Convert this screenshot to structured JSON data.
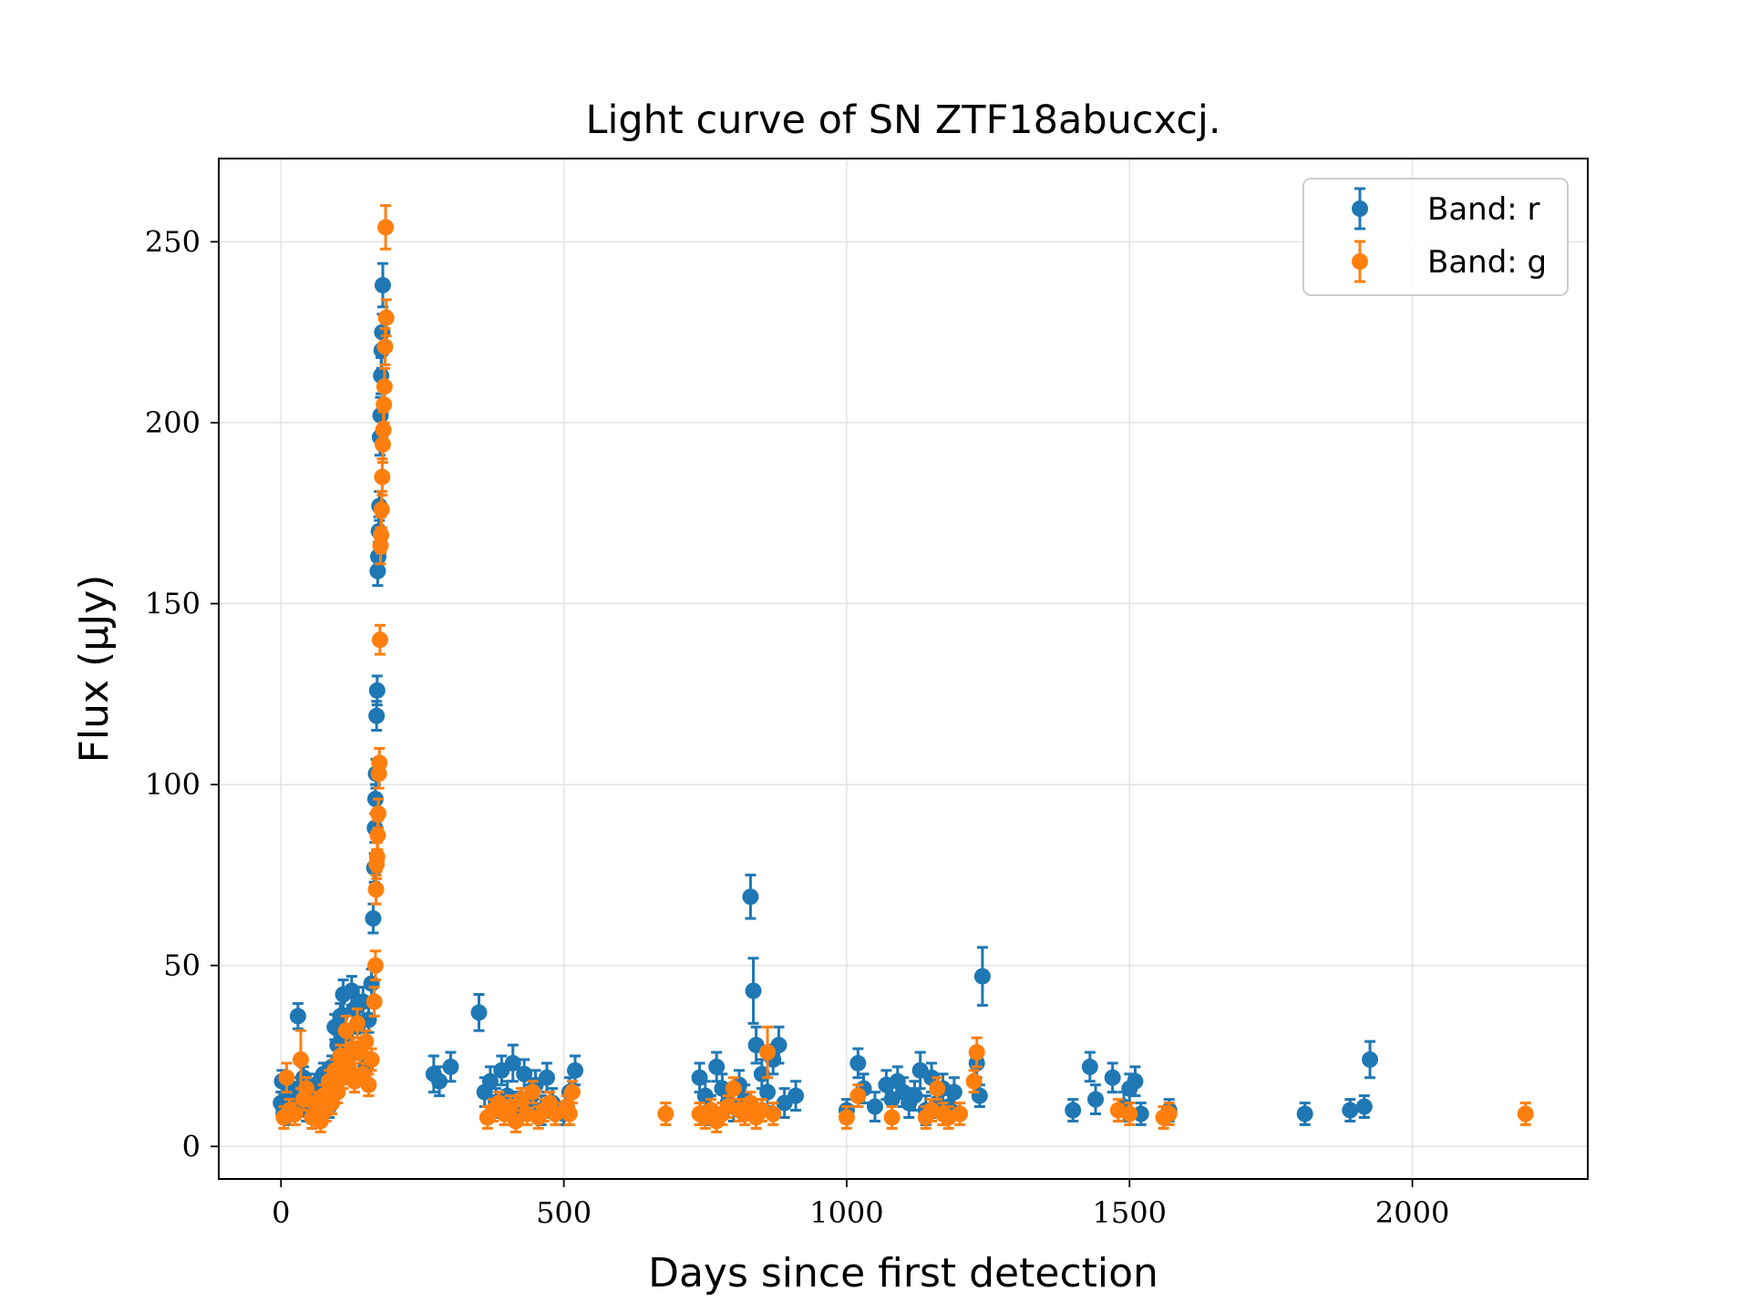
{
  "chart_data": {
    "type": "scatter",
    "title": "Light curve of SN ZTF18abucxcj.",
    "xlabel": "Days since first detection",
    "ylabel": "Flux (μJy)",
    "xlim": [
      -110,
      2310
    ],
    "ylim": [
      -9,
      273
    ],
    "xticks": [
      0,
      500,
      1000,
      1500,
      2000
    ],
    "yticks": [
      0,
      50,
      100,
      150,
      200,
      250
    ],
    "grid": true,
    "legend_position": "top-right",
    "error_bars": true,
    "series": [
      {
        "name": "Band: r",
        "color": "#1f77b4",
        "points": [
          [
            0,
            12,
            3
          ],
          [
            2,
            18,
            3
          ],
          [
            5,
            10,
            3
          ],
          [
            10,
            14,
            3
          ],
          [
            15,
            9,
            3
          ],
          [
            20,
            16,
            3
          ],
          [
            25,
            11,
            3
          ],
          [
            30,
            36,
            3.5
          ],
          [
            35,
            13,
            3
          ],
          [
            40,
            19,
            3
          ],
          [
            45,
            10,
            3
          ],
          [
            50,
            15,
            3
          ],
          [
            55,
            8,
            3
          ],
          [
            60,
            17,
            3
          ],
          [
            65,
            12,
            3
          ],
          [
            70,
            9,
            3
          ],
          [
            75,
            20,
            3
          ],
          [
            80,
            14,
            3
          ],
          [
            85,
            11,
            3
          ],
          [
            90,
            22,
            3
          ],
          [
            95,
            33,
            3.5
          ],
          [
            100,
            28,
            3
          ],
          [
            105,
            36,
            3.5
          ],
          [
            110,
            42,
            4
          ],
          [
            115,
            30,
            3
          ],
          [
            120,
            25,
            3
          ],
          [
            125,
            43,
            4
          ],
          [
            130,
            38,
            4
          ],
          [
            135,
            33,
            3
          ],
          [
            140,
            27,
            3
          ],
          [
            145,
            40,
            4
          ],
          [
            150,
            22,
            3
          ],
          [
            155,
            35,
            3.5
          ],
          [
            160,
            45,
            4
          ],
          [
            163,
            63,
            4
          ],
          [
            165,
            77,
            4
          ],
          [
            166,
            88,
            4
          ],
          [
            167,
            96,
            4
          ],
          [
            168,
            103,
            4
          ],
          [
            169,
            119,
            4
          ],
          [
            170,
            126,
            4
          ],
          [
            171,
            159,
            4
          ],
          [
            172,
            163,
            4
          ],
          [
            173,
            170,
            4
          ],
          [
            174,
            177,
            4
          ],
          [
            175,
            196,
            5
          ],
          [
            176,
            202,
            5
          ],
          [
            177,
            213,
            5
          ],
          [
            178,
            220,
            5
          ],
          [
            179,
            225,
            5
          ],
          [
            180,
            238,
            6
          ],
          [
            270,
            20,
            5
          ],
          [
            280,
            18,
            4
          ],
          [
            300,
            22,
            4
          ],
          [
            350,
            37,
            5
          ],
          [
            360,
            15,
            4
          ],
          [
            370,
            18,
            4
          ],
          [
            380,
            12,
            4
          ],
          [
            390,
            21,
            4
          ],
          [
            400,
            14,
            4
          ],
          [
            410,
            23,
            5
          ],
          [
            420,
            11,
            4
          ],
          [
            430,
            20,
            4
          ],
          [
            440,
            13,
            4
          ],
          [
            450,
            17,
            4
          ],
          [
            460,
            10,
            4
          ],
          [
            470,
            19,
            4
          ],
          [
            480,
            12,
            4
          ],
          [
            500,
            9,
            3
          ],
          [
            510,
            15,
            4
          ],
          [
            520,
            21,
            4
          ],
          [
            740,
            19,
            4
          ],
          [
            750,
            14,
            4
          ],
          [
            760,
            10,
            4
          ],
          [
            770,
            22,
            4
          ],
          [
            780,
            16,
            4
          ],
          [
            790,
            12,
            4
          ],
          [
            800,
            11,
            4
          ],
          [
            810,
            17,
            4
          ],
          [
            820,
            13,
            4
          ],
          [
            830,
            69,
            6
          ],
          [
            835,
            43,
            9
          ],
          [
            840,
            28,
            5
          ],
          [
            850,
            20,
            4
          ],
          [
            860,
            15,
            4
          ],
          [
            870,
            24,
            4
          ],
          [
            880,
            28,
            5
          ],
          [
            890,
            12,
            4
          ],
          [
            910,
            14,
            4
          ],
          [
            1000,
            10,
            3
          ],
          [
            1020,
            23,
            4
          ],
          [
            1030,
            16,
            4
          ],
          [
            1050,
            11,
            4
          ],
          [
            1070,
            17,
            4
          ],
          [
            1080,
            13,
            4
          ],
          [
            1090,
            18,
            4
          ],
          [
            1100,
            15,
            4
          ],
          [
            1110,
            12,
            4
          ],
          [
            1120,
            14,
            4
          ],
          [
            1130,
            21,
            5
          ],
          [
            1140,
            10,
            4
          ],
          [
            1150,
            19,
            4
          ],
          [
            1160,
            12,
            4
          ],
          [
            1170,
            16,
            4
          ],
          [
            1180,
            11,
            4
          ],
          [
            1190,
            15,
            4
          ],
          [
            1230,
            23,
            4
          ],
          [
            1235,
            14,
            3
          ],
          [
            1240,
            47,
            8
          ],
          [
            1400,
            10,
            3
          ],
          [
            1430,
            22,
            4
          ],
          [
            1440,
            13,
            4
          ],
          [
            1470,
            19,
            4
          ],
          [
            1490,
            11,
            4
          ],
          [
            1500,
            16,
            4
          ],
          [
            1510,
            18,
            4
          ],
          [
            1520,
            9,
            3
          ],
          [
            1570,
            10,
            3
          ],
          [
            1810,
            9,
            3
          ],
          [
            1890,
            10,
            3
          ],
          [
            1915,
            11,
            3
          ],
          [
            1925,
            24,
            5
          ]
        ]
      },
      {
        "name": "Band: g",
        "color": "#ff7f0e",
        "points": [
          [
            5,
            8,
            3
          ],
          [
            10,
            19,
            4
          ],
          [
            15,
            10,
            3
          ],
          [
            25,
            9,
            3
          ],
          [
            35,
            24,
            8
          ],
          [
            40,
            13,
            3
          ],
          [
            45,
            16,
            3
          ],
          [
            55,
            8,
            3
          ],
          [
            60,
            12,
            3
          ],
          [
            65,
            9,
            3
          ],
          [
            70,
            7,
            3
          ],
          [
            75,
            14,
            3
          ],
          [
            80,
            10,
            3
          ],
          [
            85,
            18,
            3
          ],
          [
            90,
            12,
            3
          ],
          [
            95,
            21,
            3
          ],
          [
            100,
            15,
            3
          ],
          [
            105,
            25,
            3
          ],
          [
            110,
            19,
            3
          ],
          [
            115,
            32,
            4
          ],
          [
            120,
            22,
            3
          ],
          [
            125,
            27,
            3
          ],
          [
            130,
            18,
            3
          ],
          [
            135,
            34,
            4
          ],
          [
            140,
            26,
            3
          ],
          [
            145,
            20,
            3
          ],
          [
            150,
            29,
            3
          ],
          [
            155,
            17,
            3
          ],
          [
            160,
            24,
            3
          ],
          [
            165,
            40,
            4
          ],
          [
            167,
            50,
            4
          ],
          [
            168,
            71,
            4
          ],
          [
            169,
            78,
            4
          ],
          [
            170,
            80,
            4
          ],
          [
            171,
            86,
            4
          ],
          [
            172,
            92,
            4
          ],
          [
            173,
            103,
            4
          ],
          [
            174,
            106,
            4
          ],
          [
            175,
            140,
            4
          ],
          [
            176,
            166,
            5
          ],
          [
            177,
            169,
            5
          ],
          [
            178,
            176,
            5
          ],
          [
            179,
            185,
            5
          ],
          [
            180,
            194,
            5
          ],
          [
            181,
            198,
            5
          ],
          [
            182,
            205,
            5
          ],
          [
            183,
            210,
            5
          ],
          [
            184,
            221,
            5
          ],
          [
            185,
            254,
            6
          ],
          [
            186,
            229,
            5
          ],
          [
            365,
            8,
            3
          ],
          [
            375,
            10,
            3
          ],
          [
            385,
            12,
            3
          ],
          [
            395,
            9,
            3
          ],
          [
            405,
            11,
            3
          ],
          [
            415,
            7,
            3
          ],
          [
            425,
            13,
            3
          ],
          [
            435,
            9,
            3
          ],
          [
            445,
            15,
            3
          ],
          [
            455,
            8,
            3
          ],
          [
            465,
            10,
            3
          ],
          [
            475,
            12,
            3
          ],
          [
            485,
            9,
            3
          ],
          [
            505,
            11,
            3
          ],
          [
            510,
            9,
            3
          ],
          [
            515,
            15,
            3
          ],
          [
            680,
            9,
            3
          ],
          [
            740,
            9,
            3
          ],
          [
            750,
            8,
            3
          ],
          [
            760,
            10,
            3
          ],
          [
            770,
            7,
            3
          ],
          [
            780,
            9,
            3
          ],
          [
            790,
            11,
            3
          ],
          [
            800,
            16,
            3
          ],
          [
            810,
            10,
            3
          ],
          [
            820,
            9,
            3
          ],
          [
            830,
            12,
            3
          ],
          [
            840,
            8,
            3
          ],
          [
            850,
            10,
            3
          ],
          [
            860,
            26,
            7
          ],
          [
            870,
            9,
            3
          ],
          [
            1000,
            8,
            3
          ],
          [
            1020,
            14,
            3
          ],
          [
            1080,
            8,
            3
          ],
          [
            1140,
            8,
            3
          ],
          [
            1150,
            10,
            3
          ],
          [
            1160,
            16,
            3
          ],
          [
            1170,
            9,
            3
          ],
          [
            1180,
            8,
            3
          ],
          [
            1200,
            9,
            3
          ],
          [
            1225,
            18,
            3
          ],
          [
            1230,
            26,
            4
          ],
          [
            1480,
            10,
            3
          ],
          [
            1500,
            9,
            3
          ],
          [
            1560,
            8,
            3
          ],
          [
            1570,
            9,
            3
          ],
          [
            2200,
            9,
            3
          ]
        ]
      }
    ]
  }
}
